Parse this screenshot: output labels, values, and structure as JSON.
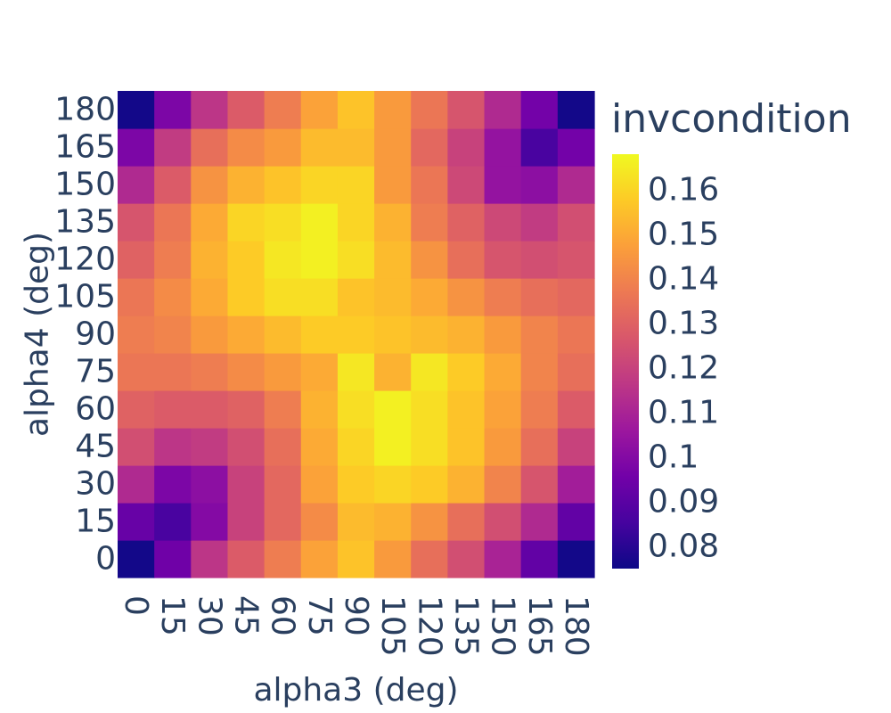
{
  "chart_data": {
    "type": "heatmap",
    "x": [
      0,
      15,
      30,
      45,
      60,
      75,
      90,
      105,
      120,
      135,
      150,
      165,
      180
    ],
    "y": [
      0,
      15,
      30,
      45,
      60,
      75,
      90,
      105,
      120,
      135,
      150,
      165,
      180
    ],
    "xlabel": "alpha3 (deg)",
    "ylabel": "alpha4 (deg)",
    "colorbar_title": "invcondition",
    "colorscale": "plasma",
    "zlim": [
      0.075,
      0.168
    ],
    "colorbar_ticks": [
      0.08,
      0.09,
      0.1,
      0.11,
      0.12,
      0.13,
      0.14,
      0.15,
      0.16
    ],
    "colorbar_tick_labels": [
      "0.08",
      "0.09",
      "0.1",
      "0.11",
      "0.12",
      "0.13",
      "0.14",
      "0.15",
      "0.16"
    ],
    "z": [
      [
        0.076,
        0.095,
        0.116,
        0.128,
        0.138,
        0.148,
        0.156,
        0.146,
        0.134,
        0.124,
        0.11,
        0.092,
        0.076
      ],
      [
        0.093,
        0.086,
        0.1,
        0.12,
        0.132,
        0.142,
        0.154,
        0.152,
        0.144,
        0.134,
        0.124,
        0.112,
        0.092
      ],
      [
        0.112,
        0.098,
        0.102,
        0.12,
        0.132,
        0.148,
        0.158,
        0.16,
        0.158,
        0.152,
        0.14,
        0.126,
        0.108
      ],
      [
        0.124,
        0.116,
        0.118,
        0.124,
        0.134,
        0.15,
        0.16,
        0.166,
        0.162,
        0.156,
        0.146,
        0.134,
        0.12
      ],
      [
        0.13,
        0.128,
        0.128,
        0.13,
        0.138,
        0.152,
        0.162,
        0.166,
        0.162,
        0.156,
        0.148,
        0.138,
        0.128
      ],
      [
        0.136,
        0.136,
        0.138,
        0.142,
        0.146,
        0.15,
        0.164,
        0.152,
        0.164,
        0.158,
        0.15,
        0.14,
        0.134
      ],
      [
        0.138,
        0.14,
        0.146,
        0.15,
        0.154,
        0.158,
        0.158,
        0.156,
        0.154,
        0.152,
        0.146,
        0.14,
        0.136
      ],
      [
        0.136,
        0.142,
        0.15,
        0.158,
        0.162,
        0.162,
        0.156,
        0.154,
        0.15,
        0.144,
        0.138,
        0.134,
        0.132
      ],
      [
        0.13,
        0.138,
        0.152,
        0.158,
        0.164,
        0.166,
        0.162,
        0.154,
        0.144,
        0.134,
        0.126,
        0.124,
        0.126
      ],
      [
        0.126,
        0.136,
        0.15,
        0.16,
        0.162,
        0.166,
        0.16,
        0.152,
        0.138,
        0.13,
        0.122,
        0.118,
        0.124
      ],
      [
        0.112,
        0.128,
        0.144,
        0.152,
        0.156,
        0.16,
        0.16,
        0.146,
        0.136,
        0.122,
        0.104,
        0.102,
        0.112
      ],
      [
        0.098,
        0.118,
        0.134,
        0.142,
        0.146,
        0.154,
        0.154,
        0.146,
        0.132,
        0.12,
        0.104,
        0.086,
        0.096
      ],
      [
        0.076,
        0.098,
        0.116,
        0.128,
        0.138,
        0.148,
        0.156,
        0.146,
        0.136,
        0.126,
        0.112,
        0.096,
        0.076
      ]
    ]
  }
}
